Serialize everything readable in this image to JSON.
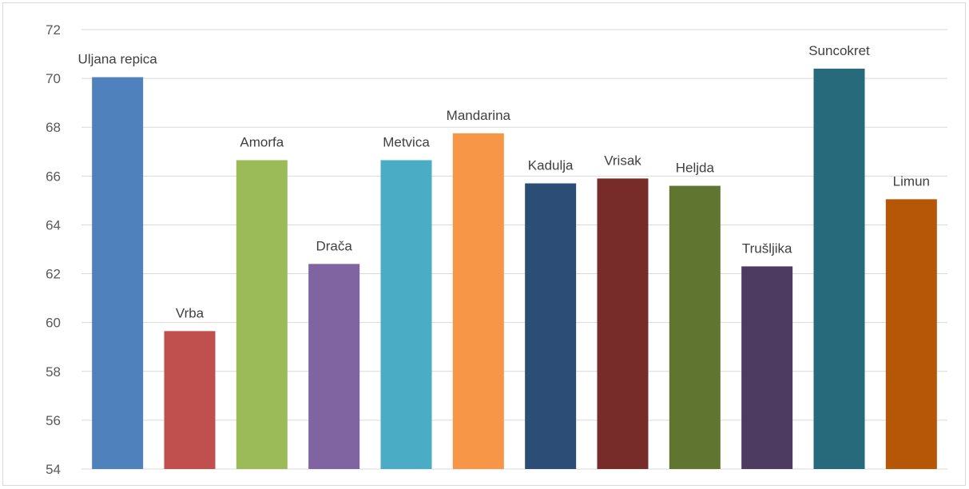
{
  "chart_data": {
    "type": "bar",
    "title": "",
    "xlabel": "",
    "ylabel": "",
    "ylim": [
      54,
      72
    ],
    "y_ticks": [
      54,
      56,
      58,
      60,
      62,
      64,
      66,
      68,
      70,
      72
    ],
    "grid": true,
    "legend": "none",
    "categories": [
      "Uljana repica",
      "Vrba",
      "Amorfa",
      "Drača",
      "Metvica",
      "Mandarina",
      "Kadulja",
      "Vrisak",
      "Heljda",
      "Trušljika",
      "Suncokret",
      "Limun"
    ],
    "values": [
      70.05,
      59.65,
      66.65,
      62.4,
      66.65,
      67.75,
      65.7,
      65.9,
      65.6,
      62.3,
      70.4,
      65.05
    ],
    "colors": [
      "#4F81BD",
      "#C0504D",
      "#9BBB59",
      "#8064A2",
      "#4BACC6",
      "#F79646",
      "#2C4D75",
      "#772C2A",
      "#5F7530",
      "#4D3B62",
      "#276A7C",
      "#B65708"
    ]
  }
}
